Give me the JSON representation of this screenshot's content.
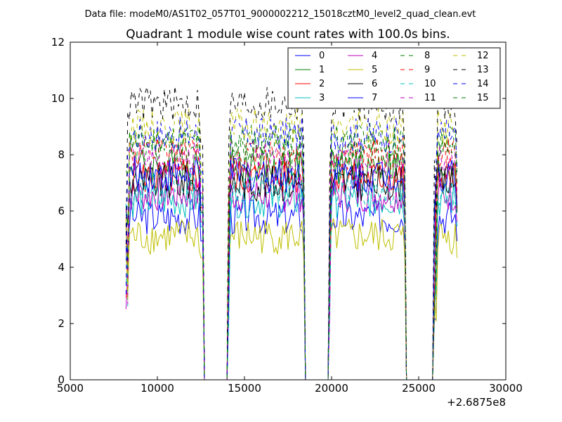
{
  "figure": {
    "data_file": "Data file: modeM0/AS1T02_057T01_9000002212_15018cztM0_level2_quad_clean.evt",
    "offset_label": "+2.6875e8"
  },
  "chart_data": {
    "type": "line",
    "title": "Quadrant 1 module wise count rates with 100.0s bins.",
    "xlabel": "",
    "ylabel": "",
    "xlim": [
      5000,
      30000
    ],
    "ylim": [
      0,
      12
    ],
    "x_offset": 268750000,
    "x_ticks": [
      5000,
      10000,
      15000,
      20000,
      25000,
      30000
    ],
    "x_tick_labels": [
      "5000",
      "10000",
      "15000",
      "20000",
      "25000",
      "30000"
    ],
    "y_ticks": [
      0,
      2,
      4,
      6,
      8,
      10,
      12
    ],
    "y_tick_labels": [
      "0",
      "2",
      "4",
      "6",
      "8",
      "10",
      "12"
    ],
    "legend_position": "top-right",
    "legend_columns": 4,
    "bin_width": 100,
    "on_segments": [
      [
        8200,
        12600
      ],
      [
        14050,
        18450
      ],
      [
        19850,
        24250
      ],
      [
        25900,
        27250
      ]
    ],
    "series": [
      {
        "name": "0",
        "color": "#0000ff",
        "dash": "solid",
        "mean": 5.8
      },
      {
        "name": "1",
        "color": "#008000",
        "dash": "solid",
        "mean": 7.6
      },
      {
        "name": "2",
        "color": "#ff0000",
        "dash": "solid",
        "mean": 7.2
      },
      {
        "name": "3",
        "color": "#00bfbf",
        "dash": "solid",
        "mean": 6.4
      },
      {
        "name": "4",
        "color": "#bf00bf",
        "dash": "solid",
        "mean": 6.6
      },
      {
        "name": "5",
        "color": "#bfbf00",
        "dash": "solid",
        "mean": 5.1
      },
      {
        "name": "6",
        "color": "#000000",
        "dash": "solid",
        "mean": 7.0
      },
      {
        "name": "7",
        "color": "#0000ff",
        "dash": "solid",
        "mean": 7.3
      },
      {
        "name": "8",
        "color": "#008000",
        "dash": "dashed",
        "mean": 8.5
      },
      {
        "name": "9",
        "color": "#ff0000",
        "dash": "dashed",
        "mean": 8.0
      },
      {
        "name": "10",
        "color": "#00bfbf",
        "dash": "dashed",
        "mean": 6.8
      },
      {
        "name": "11",
        "color": "#bf00bf",
        "dash": "dashed",
        "mean": 7.8
      },
      {
        "name": "12",
        "color": "#bfbf00",
        "dash": "dashed",
        "mean": 9.0
      },
      {
        "name": "13",
        "color": "#000000",
        "dash": "dashed",
        "mean": 9.8
      },
      {
        "name": "14",
        "color": "#0000ff",
        "dash": "dashed",
        "mean": 8.7
      },
      {
        "name": "15",
        "color": "#008000",
        "dash": "dashed",
        "mean": 8.2
      }
    ]
  }
}
